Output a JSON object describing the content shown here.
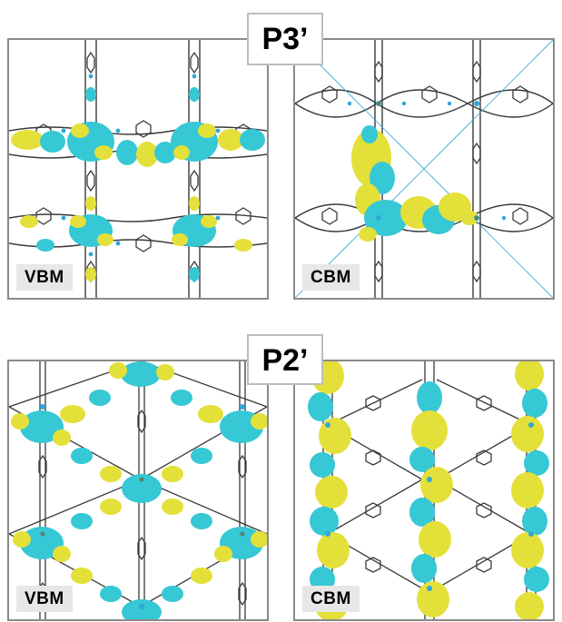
{
  "sections": [
    {
      "title": "P3’",
      "panels": [
        {
          "label": "VBM"
        },
        {
          "label": "CBM"
        }
      ]
    },
    {
      "title": "P2’",
      "panels": [
        {
          "label": "VBM"
        },
        {
          "label": "CBM"
        }
      ]
    }
  ],
  "colors": {
    "lobe_yellow": "#e4e03a",
    "lobe_cyan": "#36c8d4",
    "bond_grey": "#3a3a3a",
    "atom_blue": "#2fa8d8",
    "node_green": "#6b7d3c",
    "frame": "#8a8a8a"
  }
}
